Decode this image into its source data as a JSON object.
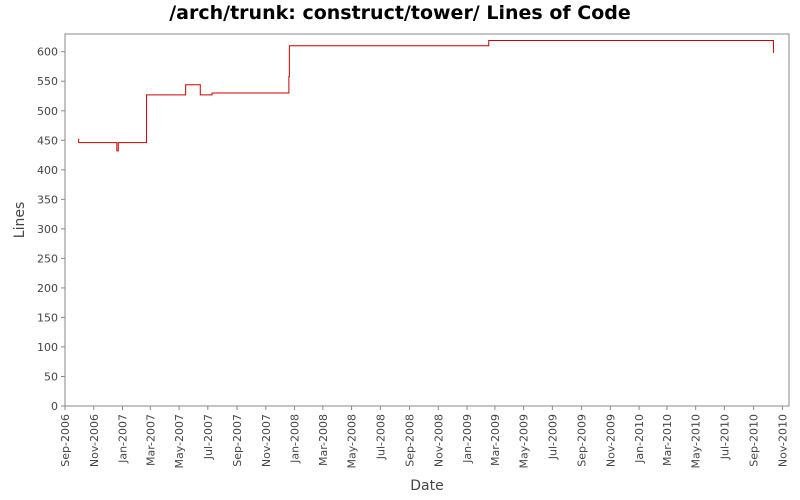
{
  "chart_data": {
    "type": "line",
    "title": "/arch/trunk: construct/tower/ Lines of Code",
    "xlabel": "Date",
    "ylabel": "Lines",
    "ylim": [
      0,
      630
    ],
    "xlim": [
      "2006-09-01",
      "2010-11-15"
    ],
    "y_ticks": [
      0,
      50,
      100,
      150,
      200,
      250,
      300,
      350,
      400,
      450,
      500,
      550,
      600
    ],
    "x_ticks": [
      {
        "date": "2006-09-01",
        "label": "Sep-2006"
      },
      {
        "date": "2006-11-01",
        "label": "Nov-2006"
      },
      {
        "date": "2007-01-01",
        "label": "Jan-2007"
      },
      {
        "date": "2007-03-01",
        "label": "Mar-2007"
      },
      {
        "date": "2007-05-01",
        "label": "May-2007"
      },
      {
        "date": "2007-07-01",
        "label": "Jul-2007"
      },
      {
        "date": "2007-09-01",
        "label": "Sep-2007"
      },
      {
        "date": "2007-11-01",
        "label": "Nov-2007"
      },
      {
        "date": "2008-01-01",
        "label": "Jan-2008"
      },
      {
        "date": "2008-03-01",
        "label": "Mar-2008"
      },
      {
        "date": "2008-05-01",
        "label": "May-2008"
      },
      {
        "date": "2008-07-01",
        "label": "Jul-2008"
      },
      {
        "date": "2008-09-01",
        "label": "Sep-2008"
      },
      {
        "date": "2008-11-01",
        "label": "Nov-2008"
      },
      {
        "date": "2009-01-01",
        "label": "Jan-2009"
      },
      {
        "date": "2009-03-01",
        "label": "Mar-2009"
      },
      {
        "date": "2009-05-01",
        "label": "May-2009"
      },
      {
        "date": "2009-07-01",
        "label": "Jul-2009"
      },
      {
        "date": "2009-09-01",
        "label": "Sep-2009"
      },
      {
        "date": "2009-11-01",
        "label": "Nov-2009"
      },
      {
        "date": "2010-01-01",
        "label": "Jan-2010"
      },
      {
        "date": "2010-03-01",
        "label": "Mar-2010"
      },
      {
        "date": "2010-05-01",
        "label": "May-2010"
      },
      {
        "date": "2010-07-01",
        "label": "Jul-2010"
      },
      {
        "date": "2010-09-01",
        "label": "Sep-2010"
      },
      {
        "date": "2010-11-01",
        "label": "Nov-2010"
      }
    ],
    "grid": false,
    "legend": "none",
    "series": [
      {
        "color": "#cc0000",
        "step": true,
        "points": [
          {
            "x": "2006-09-29",
            "y": 452
          },
          {
            "x": "2006-09-30",
            "y": 446
          },
          {
            "x": "2006-12-19",
            "y": 446
          },
          {
            "x": "2006-12-20",
            "y": 432
          },
          {
            "x": "2006-12-23",
            "y": 446
          },
          {
            "x": "2007-02-20",
            "y": 446
          },
          {
            "x": "2007-02-21",
            "y": 527
          },
          {
            "x": "2007-05-14",
            "y": 527
          },
          {
            "x": "2007-05-15",
            "y": 544
          },
          {
            "x": "2007-06-14",
            "y": 544
          },
          {
            "x": "2007-06-15",
            "y": 527
          },
          {
            "x": "2007-07-09",
            "y": 527
          },
          {
            "x": "2007-07-10",
            "y": 530
          },
          {
            "x": "2007-12-19",
            "y": 530
          },
          {
            "x": "2007-12-20",
            "y": 558
          },
          {
            "x": "2007-12-21",
            "y": 610
          },
          {
            "x": "2009-02-15",
            "y": 610
          },
          {
            "x": "2009-02-16",
            "y": 619
          },
          {
            "x": "2010-10-12",
            "y": 619
          },
          {
            "x": "2010-10-13",
            "y": 598
          }
        ]
      }
    ]
  }
}
